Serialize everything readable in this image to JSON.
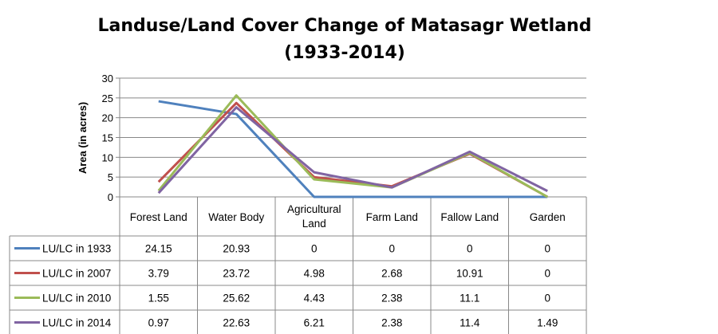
{
  "chart_data": {
    "type": "line",
    "title": "Landuse/Land Cover Change of Matasagr Wetland",
    "subtitle": "(1933-2014)",
    "ylabel": "Area (in acres)",
    "xlabel": "",
    "ylim": [
      0,
      30
    ],
    "yticks": [
      "0",
      "5",
      "10",
      "15",
      "20",
      "25",
      "30"
    ],
    "grid": true,
    "legend": "data-table",
    "categories": [
      "Forest Land",
      "Water Body",
      "Agricultural Land",
      "Farm Land",
      "Fallow Land",
      "Garden"
    ],
    "series": [
      {
        "name": "LU/LC in 1933",
        "color": "#4f81bd",
        "values": [
          24.15,
          20.93,
          0,
          0,
          0,
          0
        ],
        "labels": [
          "24.15",
          "20.93",
          "0",
          "0",
          "0",
          "0"
        ]
      },
      {
        "name": "LU/LC in 2007",
        "color": "#c0504d",
        "values": [
          3.79,
          23.72,
          4.98,
          2.68,
          10.91,
          0
        ],
        "labels": [
          "3.79",
          "23.72",
          "4.98",
          "2.68",
          "10.91",
          "0"
        ]
      },
      {
        "name": "LU/LC in 2010",
        "color": "#9bbb59",
        "values": [
          1.55,
          25.62,
          4.43,
          2.38,
          11.1,
          0
        ],
        "labels": [
          "1.55",
          "25.62",
          "4.43",
          "2.38",
          "11.1",
          "0"
        ]
      },
      {
        "name": "LU/LC in 2014",
        "color": "#8064a2",
        "values": [
          0.97,
          22.63,
          6.21,
          2.38,
          11.4,
          1.49
        ],
        "labels": [
          "0.97",
          "22.63",
          "6.21",
          "2.38",
          "11.4",
          "1.49"
        ]
      }
    ]
  }
}
